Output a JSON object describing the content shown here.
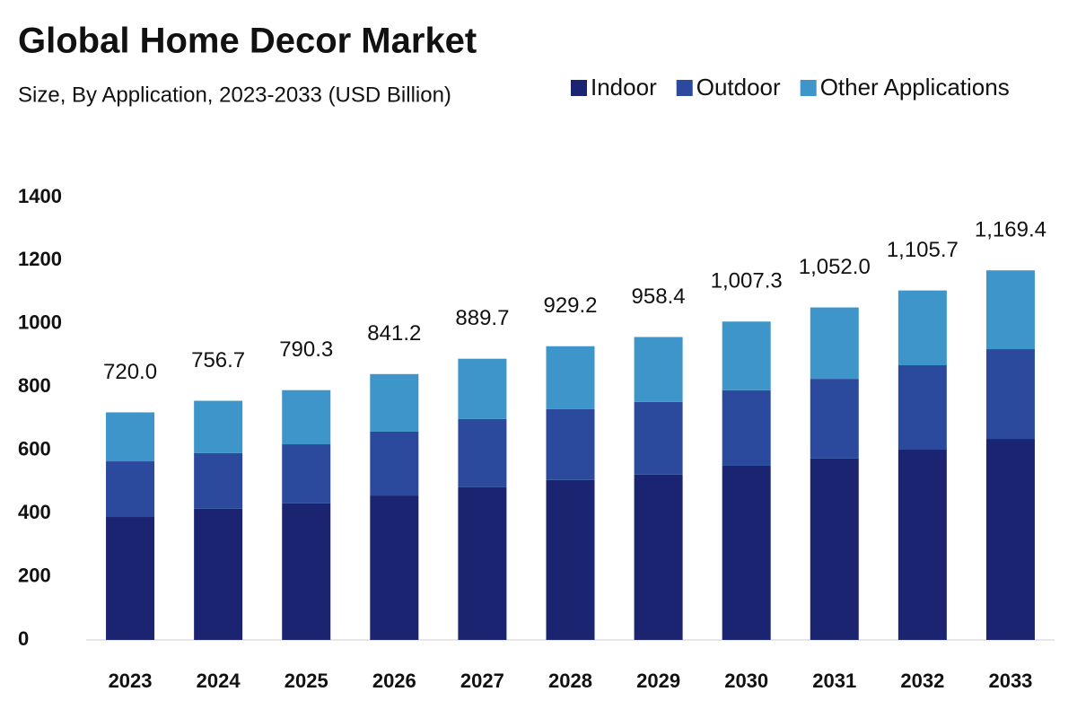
{
  "chart_data": {
    "type": "stacked_bar",
    "title": "Global Home Decor Market",
    "subtitle": "Size, By Application, 2023-2033 (USD Billion)",
    "categories": [
      "2023",
      "2024",
      "2025",
      "2026",
      "2027",
      "2028",
      "2029",
      "2030",
      "2031",
      "2032",
      "2033"
    ],
    "series": [
      {
        "name": "Indoor",
        "color": "#1b2470",
        "values": [
          389,
          415,
          432,
          457,
          483,
          506,
          523,
          551,
          574,
          602,
          636
        ]
      },
      {
        "name": "Outdoor",
        "color": "#2b4a9e",
        "values": [
          176,
          176,
          187,
          202,
          216,
          224,
          230,
          239,
          252,
          267,
          284
        ]
      },
      {
        "name": "Other Applications",
        "color": "#3e95c9",
        "values": [
          155,
          165.7,
          171.3,
          182.2,
          190.7,
          199.2,
          205.4,
          217.3,
          226,
          236.7,
          249.4
        ]
      }
    ],
    "totals": [
      720.0,
      756.7,
      790.3,
      841.2,
      889.7,
      929.2,
      958.4,
      1007.3,
      1052.0,
      1105.7,
      1169.4
    ],
    "total_labels": [
      "720.0",
      "756.7",
      "790.3",
      "841.2",
      "889.7",
      "929.2",
      "958.4",
      "1,007.3",
      "1,052.0",
      "1,105.7",
      "1,169.4"
    ],
    "ylim": [
      0,
      1400
    ],
    "yticks": [
      0,
      200,
      400,
      600,
      800,
      1000,
      1200,
      1400
    ],
    "grid": false
  }
}
